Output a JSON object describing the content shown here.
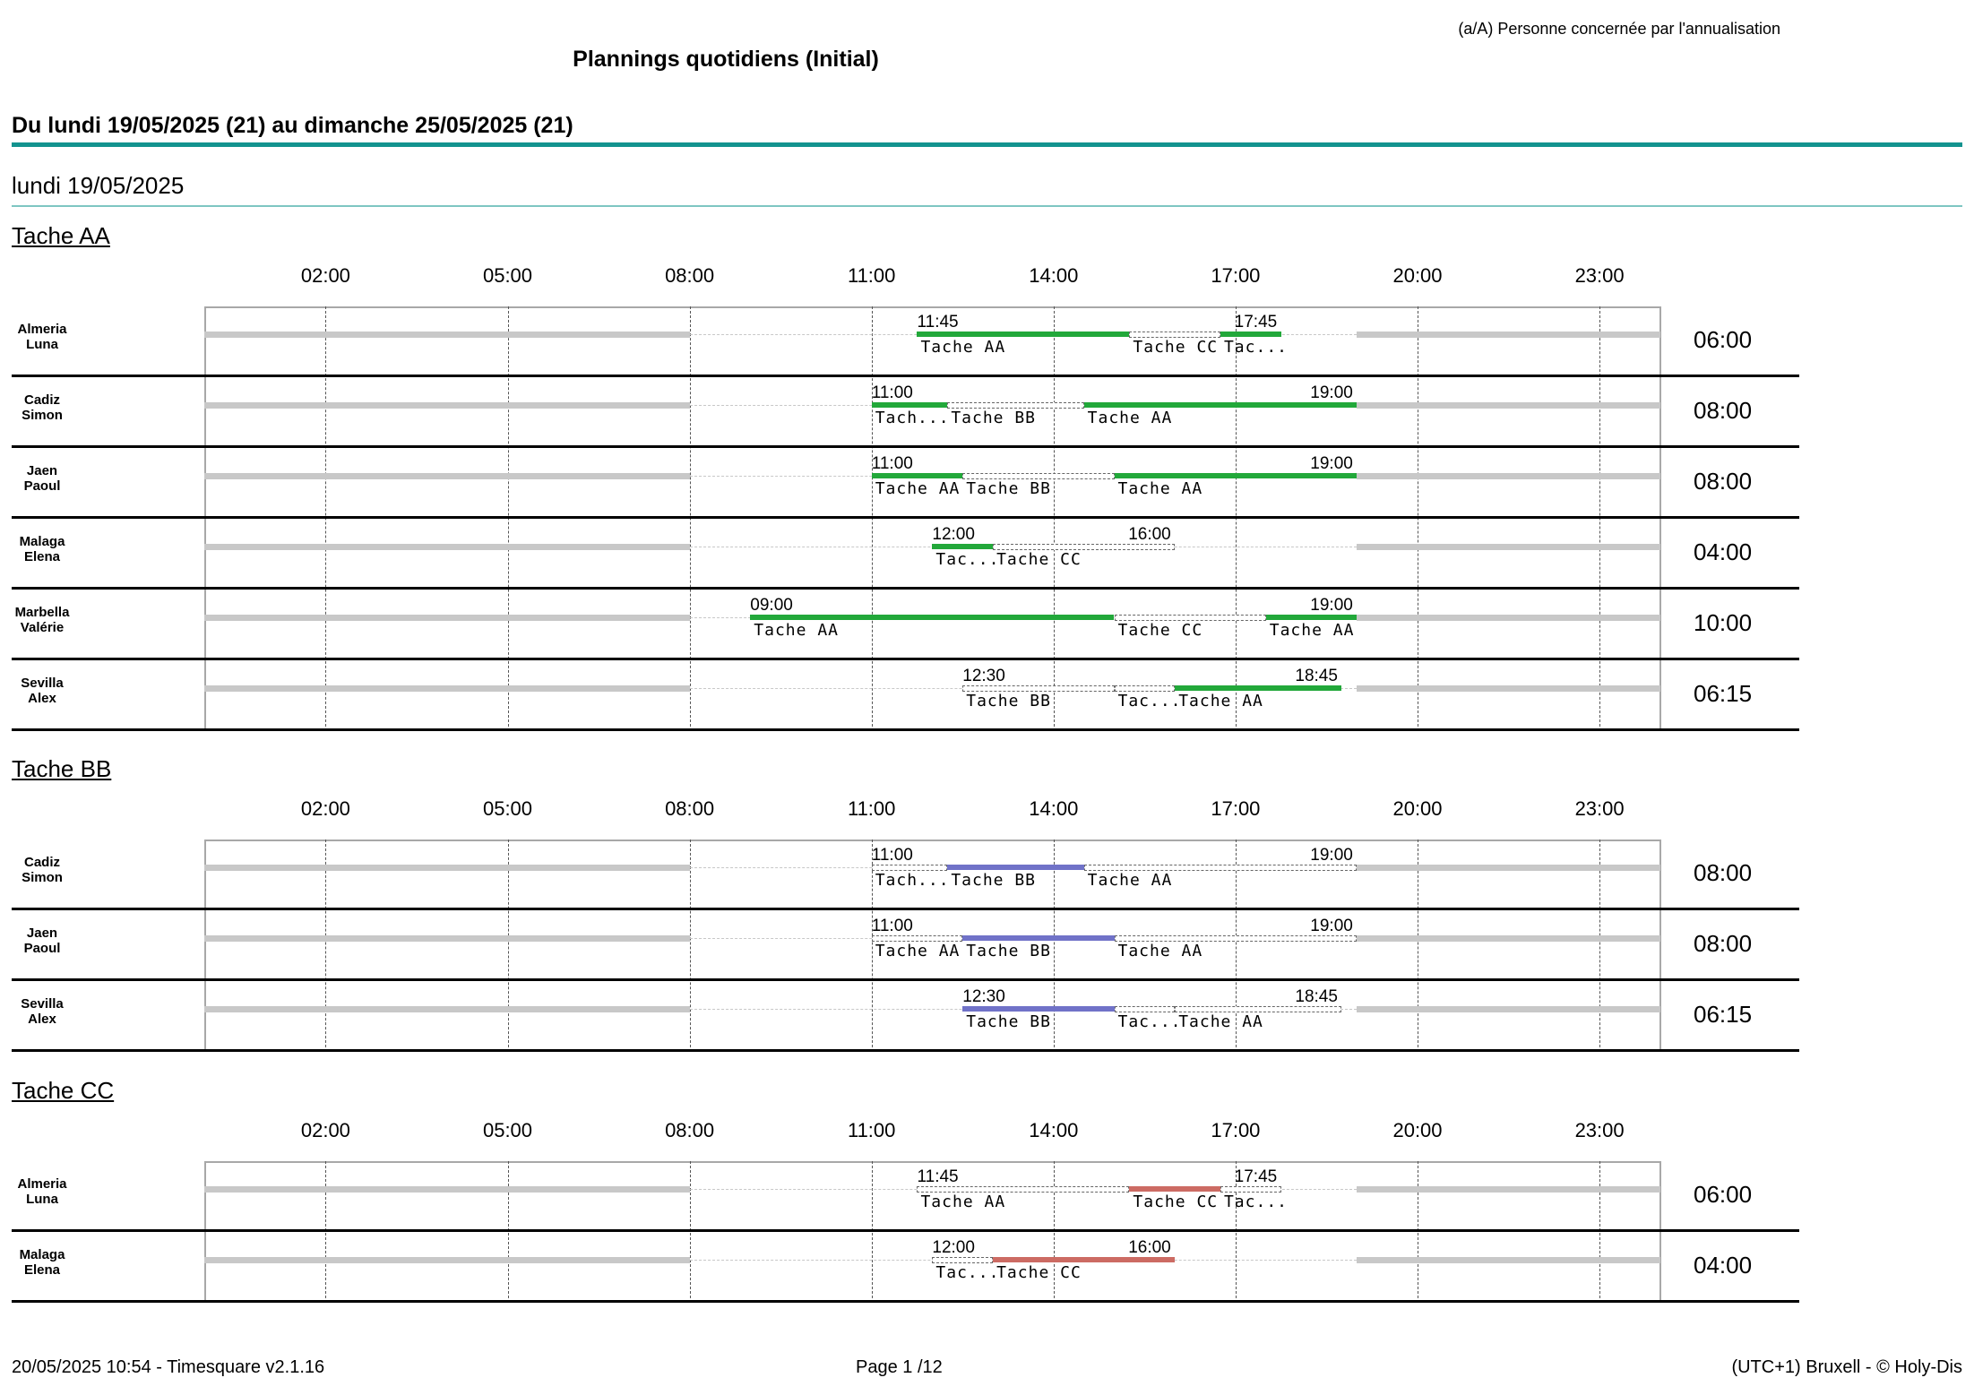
{
  "legend": "(a/A) Personne concernée par l'annualisation",
  "title": "Plannings quotidiens (Initial)",
  "period": "Du lundi 19/05/2025 (21) au dimanche 25/05/2025 (21)",
  "day": "lundi 19/05/2025",
  "axis_ticks": [
    "02:00",
    "05:00",
    "08:00",
    "11:00",
    "14:00",
    "17:00",
    "20:00",
    "23:00"
  ],
  "colors": {
    "tache_aa": "#22a83a",
    "tache_bb": "#7072c8",
    "tache_cc": "#cc6b63",
    "accent": "#13938f"
  },
  "sections": [
    {
      "title": "Tache AA",
      "color": "#22a83a",
      "rows": [
        {
          "name": [
            "Almeria",
            "Luna"
          ],
          "total": "06:00",
          "start": "11:45",
          "end": "17:45",
          "segments": [
            {
              "from": 11.75,
              "to": 15.25,
              "task": "Tache AA",
              "hl": true
            },
            {
              "from": 15.25,
              "to": 16.75,
              "task": "Tache CC",
              "hl": false
            },
            {
              "from": 16.75,
              "to": 17.75,
              "task": "Tac...",
              "hl": true
            }
          ],
          "gray": [
            [
              0,
              8
            ],
            [
              19,
              24
            ]
          ]
        },
        {
          "name": [
            "Cadiz",
            "Simon"
          ],
          "total": "08:00",
          "start": "11:00",
          "end": "19:00",
          "segments": [
            {
              "from": 11,
              "to": 12.25,
              "task": "Tach...",
              "hl": true
            },
            {
              "from": 12.25,
              "to": 14.5,
              "task": "Tache BB",
              "hl": false
            },
            {
              "from": 14.5,
              "to": 19,
              "task": "Tache AA",
              "hl": true
            }
          ],
          "gray": [
            [
              0,
              8
            ],
            [
              19,
              24
            ]
          ]
        },
        {
          "name": [
            "Jaen",
            "Paoul"
          ],
          "total": "08:00",
          "start": "11:00",
          "end": "19:00",
          "segments": [
            {
              "from": 11,
              "to": 12.5,
              "task": "Tache AA",
              "hl": true
            },
            {
              "from": 12.5,
              "to": 15,
              "task": "Tache BB",
              "hl": false
            },
            {
              "from": 15,
              "to": 19,
              "task": "Tache AA",
              "hl": true
            }
          ],
          "gray": [
            [
              0,
              8
            ],
            [
              19,
              24
            ]
          ]
        },
        {
          "name": [
            "Malaga",
            "Elena"
          ],
          "total": "04:00",
          "start": "12:00",
          "end": "16:00",
          "segments": [
            {
              "from": 12,
              "to": 13,
              "task": "Tac...",
              "hl": true
            },
            {
              "from": 13,
              "to": 16,
              "task": "Tache CC",
              "hl": false
            }
          ],
          "gray": [
            [
              0,
              8
            ],
            [
              19,
              24
            ]
          ]
        },
        {
          "name": [
            "Marbella",
            "Valérie"
          ],
          "total": "10:00",
          "start": "09:00",
          "end": "19:00",
          "segments": [
            {
              "from": 9,
              "to": 15,
              "task": "Tache AA",
              "hl": true
            },
            {
              "from": 15,
              "to": 17.5,
              "task": "Tache CC",
              "hl": false
            },
            {
              "from": 17.5,
              "to": 19,
              "task": "Tache AA",
              "hl": true
            }
          ],
          "gray": [
            [
              0,
              8
            ],
            [
              19,
              24
            ]
          ]
        },
        {
          "name": [
            "Sevilla",
            "Alex"
          ],
          "total": "06:15",
          "start": "12:30",
          "end": "18:45",
          "segments": [
            {
              "from": 12.5,
              "to": 15,
              "task": "Tache BB",
              "hl": false
            },
            {
              "from": 15,
              "to": 16,
              "task": "Tac...",
              "hl": false
            },
            {
              "from": 16,
              "to": 18.75,
              "task": "Tache AA",
              "hl": true
            }
          ],
          "gray": [
            [
              0,
              8
            ],
            [
              19,
              24
            ]
          ]
        }
      ]
    },
    {
      "title": "Tache BB",
      "color": "#7072c8",
      "rows": [
        {
          "name": [
            "Cadiz",
            "Simon"
          ],
          "total": "08:00",
          "start": "11:00",
          "end": "19:00",
          "segments": [
            {
              "from": 11,
              "to": 12.25,
              "task": "Tach...",
              "hl": false
            },
            {
              "from": 12.25,
              "to": 14.5,
              "task": "Tache BB",
              "hl": true
            },
            {
              "from": 14.5,
              "to": 19,
              "task": "Tache AA",
              "hl": false
            }
          ],
          "gray": [
            [
              0,
              8
            ],
            [
              19,
              24
            ]
          ]
        },
        {
          "name": [
            "Jaen",
            "Paoul"
          ],
          "total": "08:00",
          "start": "11:00",
          "end": "19:00",
          "segments": [
            {
              "from": 11,
              "to": 12.5,
              "task": "Tache AA",
              "hl": false
            },
            {
              "from": 12.5,
              "to": 15,
              "task": "Tache BB",
              "hl": true
            },
            {
              "from": 15,
              "to": 19,
              "task": "Tache AA",
              "hl": false
            }
          ],
          "gray": [
            [
              0,
              8
            ],
            [
              19,
              24
            ]
          ]
        },
        {
          "name": [
            "Sevilla",
            "Alex"
          ],
          "total": "06:15",
          "start": "12:30",
          "end": "18:45",
          "segments": [
            {
              "from": 12.5,
              "to": 15,
              "task": "Tache BB",
              "hl": true
            },
            {
              "from": 15,
              "to": 16,
              "task": "Tac...",
              "hl": false
            },
            {
              "from": 16,
              "to": 18.75,
              "task": "Tache AA",
              "hl": false
            }
          ],
          "gray": [
            [
              0,
              8
            ],
            [
              19,
              24
            ]
          ]
        }
      ]
    },
    {
      "title": "Tache CC",
      "color": "#cc6b63",
      "rows": [
        {
          "name": [
            "Almeria",
            "Luna"
          ],
          "total": "06:00",
          "start": "11:45",
          "end": "17:45",
          "segments": [
            {
              "from": 11.75,
              "to": 15.25,
              "task": "Tache AA",
              "hl": false
            },
            {
              "from": 15.25,
              "to": 16.75,
              "task": "Tache CC",
              "hl": true
            },
            {
              "from": 16.75,
              "to": 17.75,
              "task": "Tac...",
              "hl": false
            }
          ],
          "gray": [
            [
              0,
              8
            ],
            [
              19,
              24
            ]
          ]
        },
        {
          "name": [
            "Malaga",
            "Elena"
          ],
          "total": "04:00",
          "start": "12:00",
          "end": "16:00",
          "segments": [
            {
              "from": 12,
              "to": 13,
              "task": "Tac...",
              "hl": false
            },
            {
              "from": 13,
              "to": 16,
              "task": "Tache CC",
              "hl": true
            }
          ],
          "gray": [
            [
              0,
              8
            ],
            [
              19,
              24
            ]
          ]
        }
      ]
    }
  ],
  "footer": {
    "left": "20/05/2025 10:54 - Timesquare v2.1.16",
    "center": "Page 1 /12",
    "right": "(UTC+1) Bruxell - © Holy-Dis"
  }
}
